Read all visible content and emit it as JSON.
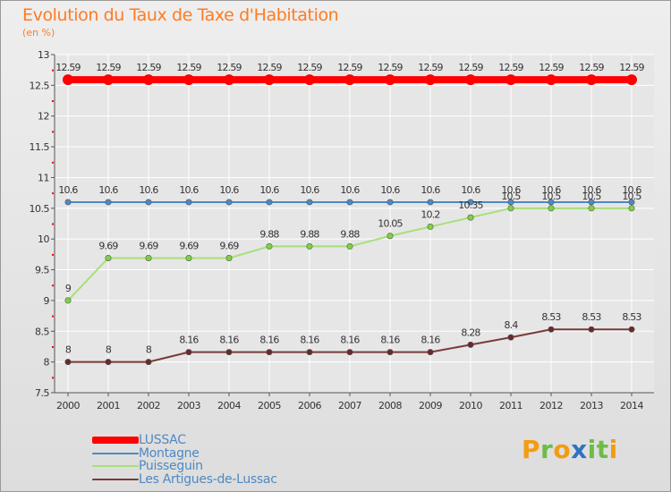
{
  "title": "Evolution du Taux de Taxe d'Habitation",
  "subtitle": "(en %)",
  "logo": {
    "text": [
      "P",
      "r",
      "o",
      "x",
      "i",
      "t",
      "i"
    ],
    "colors": [
      "#f39c12",
      "#6cbd45",
      "#f39c12",
      "#2f74c0",
      "#6cbd45",
      "#6cbd45",
      "#f39c12"
    ]
  },
  "chart_data": {
    "type": "line",
    "title": "Evolution du Taux de Taxe d'Habitation",
    "ylabel": "(en %)",
    "x": [
      "2000",
      "2001",
      "2002",
      "2003",
      "2004",
      "2005",
      "2006",
      "2007",
      "2008",
      "2009",
      "2010",
      "2011",
      "2012",
      "2013",
      "2014"
    ],
    "ylim": [
      7.5,
      13
    ],
    "yticks": [
      "7.5",
      "8",
      "8.5",
      "9",
      "9.5",
      "10",
      "10.5",
      "11",
      "11.5",
      "12",
      "12.5",
      "13"
    ],
    "grid": true,
    "legend_position": "bottom-left",
    "series": [
      {
        "name": "LUSSAC",
        "color": "#ff0000",
        "width": 8,
        "marker_fill": "#ff0000",
        "values": [
          12.59,
          12.59,
          12.59,
          12.59,
          12.59,
          12.59,
          12.59,
          12.59,
          12.59,
          12.59,
          12.59,
          12.59,
          12.59,
          12.59,
          12.59
        ],
        "labels": [
          "12.59",
          "12.59",
          "12.59",
          "12.59",
          "12.59",
          "12.59",
          "12.59",
          "12.59",
          "12.59",
          "12.59",
          "12.59",
          "12.59",
          "12.59",
          "12.59",
          "12.59"
        ]
      },
      {
        "name": "Montagne",
        "color": "#4e89c4",
        "width": 2,
        "marker_fill": "#4e89c4",
        "values": [
          10.6,
          10.6,
          10.6,
          10.6,
          10.6,
          10.6,
          10.6,
          10.6,
          10.6,
          10.6,
          10.6,
          10.6,
          10.6,
          10.6,
          10.6
        ],
        "labels": [
          "10.6",
          "10.6",
          "10.6",
          "10.6",
          "10.6",
          "10.6",
          "10.6",
          "10.6",
          "10.6",
          "10.6",
          "10.6",
          "10.6",
          "10.6",
          "10.6",
          "10.6"
        ]
      },
      {
        "name": "Puisseguin",
        "color": "#a6e07a",
        "width": 2,
        "marker_fill": "#7ed244",
        "values": [
          9,
          9.69,
          9.69,
          9.69,
          9.69,
          9.88,
          9.88,
          9.88,
          10.05,
          10.2,
          10.35,
          10.5,
          10.5,
          10.5,
          10.5
        ],
        "labels": [
          "9",
          "9.69",
          "9.69",
          "9.69",
          "9.69",
          "9.88",
          "9.88",
          "9.88",
          "10.05",
          "10.2",
          "10.35",
          "10.5",
          "10.5",
          "10.5",
          "10.5"
        ]
      },
      {
        "name": "Les Artigues-de-Lussac",
        "color": "#7a3a3a",
        "width": 2,
        "marker_fill": "#6b2a2a",
        "values": [
          8,
          8,
          8,
          8.16,
          8.16,
          8.16,
          8.16,
          8.16,
          8.16,
          8.16,
          8.28,
          8.4,
          8.53,
          8.53,
          8.53
        ],
        "labels": [
          "8",
          "8",
          "8",
          "8.16",
          "8.16",
          "8.16",
          "8.16",
          "8.16",
          "8.16",
          "8.16",
          "8.28",
          "8.4",
          "8.53",
          "8.53",
          "8.53"
        ]
      }
    ]
  }
}
